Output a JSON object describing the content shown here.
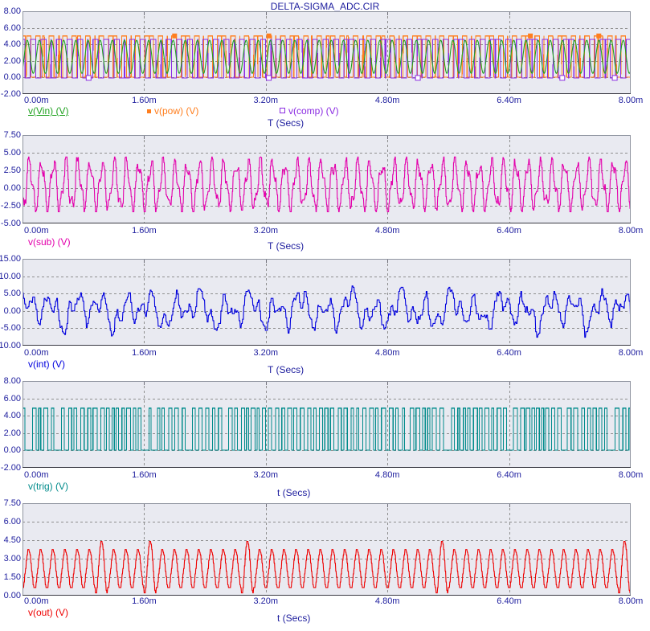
{
  "title": "DELTA-SIGMA_ADC.CIR",
  "chart_data": {
    "type": "line",
    "x_unit": "Secs",
    "x_range_ms": [
      0,
      8
    ],
    "x_tick_labels": [
      "0.00m",
      "1.60m",
      "3.20m",
      "4.80m",
      "6.40m",
      "8.00m"
    ],
    "grid": "dashed",
    "charts": [
      {
        "name": "input-power-comparator-pane",
        "xlabel": "T (Secs)",
        "y_ticks": [
          "8.00",
          "6.00",
          "4.00",
          "2.00",
          "0.00",
          "-2.00"
        ],
        "y_min": -2,
        "y_max": 8,
        "traces": [
          {
            "label": "v(Vin) (V)",
            "color": "#1FA11F",
            "underline": true,
            "marker": "none",
            "signal": {
              "kind": "sine",
              "center": 2.5,
              "amp": 2.0,
              "freq": 6.25,
              "phase": -0.85,
              "N": 1600
            }
          },
          {
            "label": "v(pow) (V)",
            "color": "#FF7E1E",
            "marker": "filled-square",
            "signal": {
              "kind": "pwm",
              "high": 5.02,
              "low": 0.06,
              "carrier": 10.5,
              "triMin": 0.4,
              "triMax": 4.6,
              "ref": {
                "center": 2.5,
                "amp": 2.0,
                "freq": 6.25,
                "phase": -0.85
              },
              "N": 3200
            }
          },
          {
            "label": "v(comp) (V)",
            "color": "#8A2BE2",
            "marker": "open-square",
            "signal": {
              "kind": "pwm",
              "invert": true,
              "high": 4.62,
              "low": -0.05,
              "carrier": 8.3,
              "carrierPhase": 0.37,
              "triMin": 0.3,
              "triMax": 4.7,
              "ref": {
                "center": 2.5,
                "amp": 2.0,
                "freq": 6.25,
                "phase": -0.85
              },
              "N": 3200
            }
          }
        ],
        "markers": {
          "filled": {
            "color": "#FF7E1E",
            "v": 5.02,
            "t": [
              2.0,
              3.24,
              6.68,
              7.58
            ]
          },
          "open": {
            "color": "#8A2BE2",
            "v": -0.05,
            "t": [
              0.87,
              3.24,
              5.2,
              7.1,
              7.79
            ]
          }
        }
      },
      {
        "name": "subtractor-pane",
        "xlabel": "T (Secs)",
        "y_ticks": [
          "7.50",
          "5.00",
          "2.50",
          "0.00",
          "-2.50",
          "-5.00"
        ],
        "y_min": -5,
        "y_max": 7.5,
        "traces": [
          {
            "label": "v(sub) (V)",
            "color": "#E300AC",
            "marker": "none",
            "signal": {
              "kind": "mix",
              "center": 0.45,
              "comps": [
                {
                  "amp": 3.05,
                  "freq": 6.25,
                  "phase": -1.9
                },
                {
                  "amp": 1.15,
                  "freq": 14.1,
                  "phase": 0.9
                }
              ],
              "noise": 0.55,
              "quant": 0.24,
              "holdN": 2,
              "clip": [
                -3.35,
                4.4
              ],
              "N": 1600
            }
          }
        ]
      },
      {
        "name": "integrator-pane",
        "xlabel": "T (Secs)",
        "y_ticks": [
          "15.00",
          "10.00",
          "5.00",
          "0.00",
          "-5.00",
          "-10.00"
        ],
        "y_min": -10,
        "y_max": 15,
        "traces": [
          {
            "label": "v(int) (V)",
            "color": "#0000DE",
            "marker": "none",
            "signal": {
              "kind": "mix",
              "center": 0.2,
              "comps": [
                {
                  "amp": 3.0,
                  "freq": 3.05,
                  "phase": 0.6
                },
                {
                  "amp": 2.5,
                  "freq": 6.4,
                  "phase": 2.1
                },
                {
                  "amp": 1.7,
                  "freq": 1.45,
                  "phase": 0.0
                },
                {
                  "amp": 0.9,
                  "freq": 11.3,
                  "phase": 1.7
                }
              ],
              "noise": 1.0,
              "quant": 0.4,
              "holdN": 3,
              "clip": [
                -8.3,
                8.4
              ],
              "N": 1600
            }
          }
        ]
      },
      {
        "name": "trigger-pane",
        "xlabel": "t (Secs)",
        "y_ticks": [
          "8.00",
          "6.00",
          "4.00",
          "2.00",
          "0.00",
          "-2.00"
        ],
        "y_min": -2,
        "y_max": 8,
        "traces": [
          {
            "label": "v(trig) (V)",
            "color": "#008B8B",
            "marker": "none",
            "signal": {
              "kind": "clock",
              "high": 4.88,
              "low": 0.05,
              "highMin": 0.026,
              "highVar": 0.03,
              "lowMin": 0.022,
              "lowVar": 0.034,
              "longLowProb": 0.1,
              "longLowAdd": 0.05
            }
          }
        ]
      },
      {
        "name": "output-pane",
        "xlabel": "t (Secs)",
        "y_ticks": [
          "7.50",
          "6.00",
          "4.50",
          "3.00",
          "1.50",
          "0.00"
        ],
        "y_min": 0,
        "y_max": 7.5,
        "traces": [
          {
            "label": "v(out) (V)",
            "color": "#EE0000",
            "marker": "none",
            "signal": {
              "kind": "burst",
              "center": 2.18,
              "freq": 6.25,
              "phase": -1.5,
              "ampBase": 1.58,
              "ampExtra": 0.75,
              "bigProb": 0.14,
              "seed": 3,
              "quant": 0.22,
              "holdN": 2,
              "clip": [
                0.22,
                4.5
              ],
              "N": 1600
            }
          }
        ]
      }
    ]
  }
}
